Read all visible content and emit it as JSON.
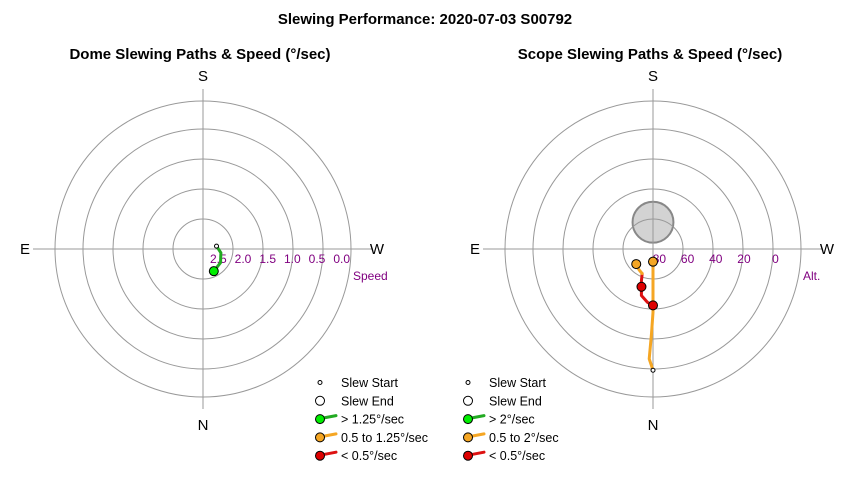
{
  "title": "Slewing Performance: 2020-07-03 S00792",
  "colors": {
    "ring": "#999999",
    "axis": "#999999",
    "label": "#800080",
    "fast": "#22aa22",
    "medium": "#f5a623",
    "slow": "#dd1111",
    "fast_marker": "#00ee00",
    "medium_marker": "#f5a623",
    "slow_marker": "#dd0000",
    "moon_fill": "#d3d3d3",
    "moon_edge": "#888888"
  },
  "chart_data": [
    {
      "type": "polar-path",
      "title": "Dome Slewing Paths & Speed (°/sec)",
      "compass": {
        "top": "S",
        "left": "E",
        "right": "W",
        "bottom": "N"
      },
      "radial_axis": {
        "name": "Speed",
        "max": 3.0,
        "tick_values": [
          2.5,
          2.0,
          1.5,
          1.0,
          0.5,
          0.0
        ],
        "tick_labels": [
          "2.5",
          "2.0",
          "1.5",
          "1.0",
          "0.5",
          "0.0"
        ]
      },
      "paths": [
        {
          "speed_class": "fast",
          "points": [
            [
              206,
              2.5
            ],
            [
              232,
              2.55
            ],
            [
              258,
              2.63
            ],
            [
              282,
              2.72
            ]
          ]
        }
      ],
      "start_marker": [
        282,
        2.72
      ],
      "end_marker": {
        "point": [
          206,
          2.5
        ],
        "speed_class": "fast"
      },
      "legend": [
        {
          "kind": "start",
          "label": "Slew Start"
        },
        {
          "kind": "end",
          "label": "Slew End"
        },
        {
          "kind": "fast",
          "label": "> 1.25°/sec"
        },
        {
          "kind": "medium",
          "label": "0.5 to 1.25°/sec"
        },
        {
          "kind": "slow",
          "label": "< 0.5°/sec"
        }
      ]
    },
    {
      "type": "polar-path",
      "title": "Scope Slewing Paths & Speed (°/sec)",
      "compass": {
        "top": "S",
        "left": "E",
        "right": "W",
        "bottom": "N"
      },
      "radial_axis": {
        "name": "Alt.",
        "min": 90,
        "max": -15,
        "tick_values": [
          80,
          60,
          40,
          20,
          0
        ],
        "tick_labels": [
          "80",
          "60",
          "40",
          "20",
          "0"
        ]
      },
      "moon": {
        "az": 0,
        "alt": 71,
        "radius_deg": 14.5
      },
      "paths": [
        {
          "speed_class": "medium",
          "points": [
            [
              180,
              81
            ],
            [
              180,
              60
            ],
            [
              180,
              45
            ],
            [
              179,
              30
            ],
            [
              178,
              12
            ],
            [
              180,
              4
            ]
          ]
        },
        {
          "speed_class": "slow",
          "points": [
            [
              180,
              50
            ],
            [
              174,
              52
            ],
            [
              166,
              56
            ],
            [
              163,
              62
            ]
          ]
        },
        {
          "speed_class": "slow",
          "points": [
            [
              163,
              62
            ],
            [
              160,
              66
            ],
            [
              158,
              69
            ],
            [
              156,
              71
            ]
          ]
        },
        {
          "speed_class": "medium",
          "points": [
            [
              156,
              71
            ],
            [
              148,
              72
            ],
            [
              138,
              73
            ],
            [
              132,
              74
            ]
          ]
        }
      ],
      "start_marker": [
        180,
        4
      ],
      "end_markers": [
        {
          "point": [
            180,
            81
          ],
          "speed_class": "medium"
        },
        {
          "point": [
            180,
            50
          ],
          "speed_class": "slow"
        },
        {
          "point": [
            163,
            62
          ],
          "speed_class": "slow"
        },
        {
          "point": [
            132,
            74
          ],
          "speed_class": "medium"
        }
      ],
      "legend": [
        {
          "kind": "start",
          "label": "Slew Start"
        },
        {
          "kind": "end",
          "label": "Slew End"
        },
        {
          "kind": "fast",
          "label": "> 2°/sec"
        },
        {
          "kind": "medium",
          "label": "0.5 to 2°/sec"
        },
        {
          "kind": "slow",
          "label": "< 0.5°/sec"
        }
      ]
    }
  ]
}
